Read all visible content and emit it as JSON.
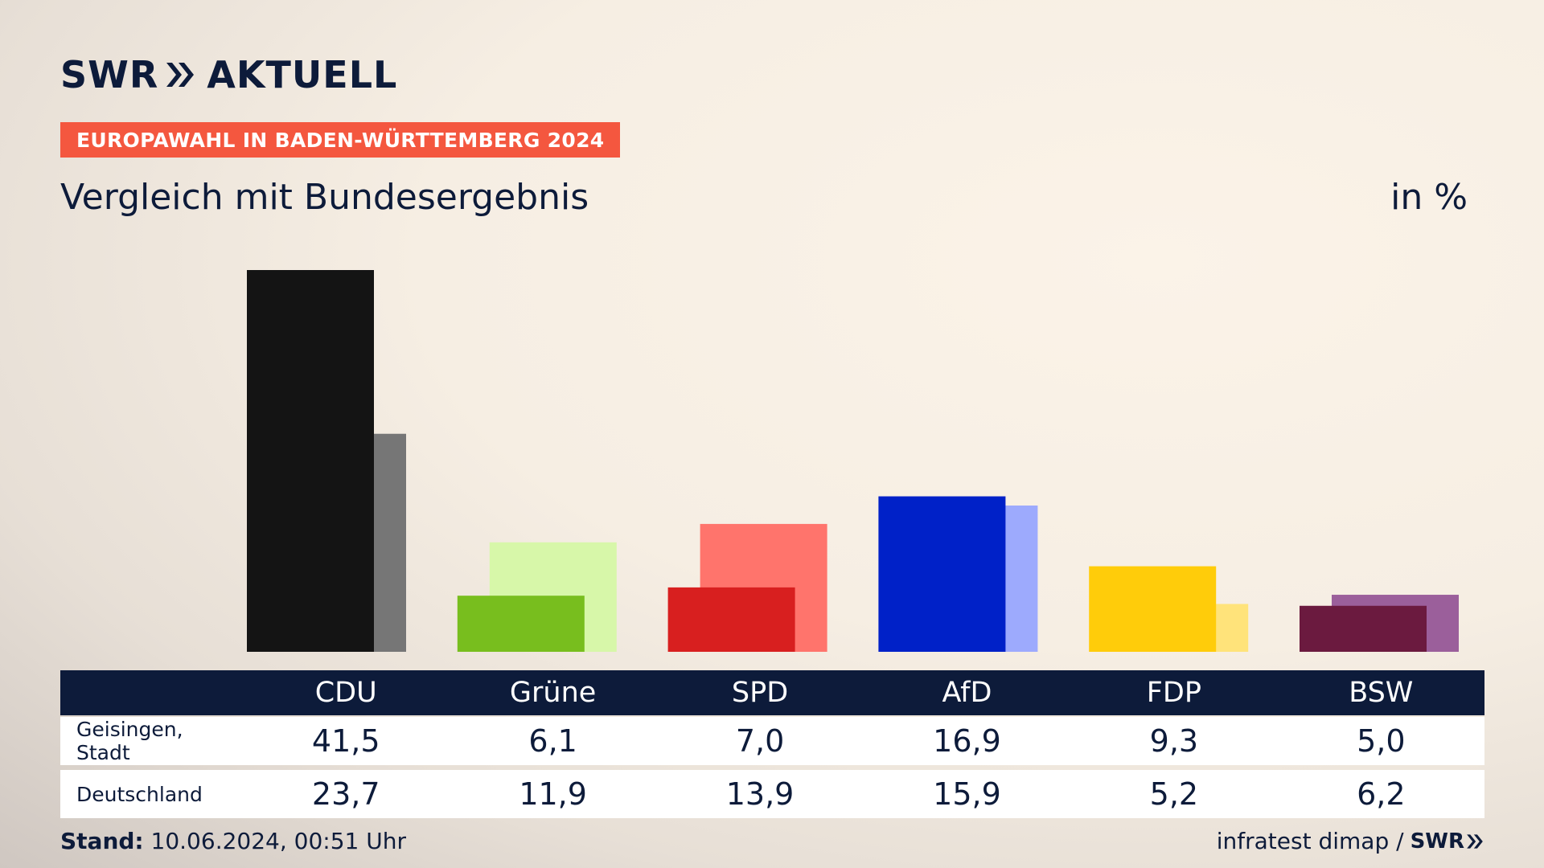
{
  "brand": {
    "logo_text_left": "SWR",
    "logo_text_right": "AKTUELL",
    "footer_logo": "SWR"
  },
  "header": {
    "kicker": "EUROPAWAHL IN BADEN-WÜRTTEMBERG 2024",
    "subtitle": "Vergleich mit Bundesergebnis",
    "unit": "in %"
  },
  "table": {
    "rows": [
      {
        "label": "Geisingen, Stadt",
        "values": [
          "41,5",
          "6,1",
          "7,0",
          "16,9",
          "9,3",
          "5,0"
        ]
      },
      {
        "label": "Deutschland",
        "values": [
          "23,7",
          "11,9",
          "13,9",
          "15,9",
          "5,2",
          "6,2"
        ]
      }
    ]
  },
  "footer": {
    "stand_label": "Stand:",
    "stand_value": "10.06.2024, 00:51 Uhr",
    "source": "infratest dimap /"
  },
  "chart_data": {
    "type": "bar",
    "categories": [
      "CDU",
      "Grüne",
      "SPD",
      "AfD",
      "FDP",
      "BSW"
    ],
    "series": [
      {
        "name": "Geisingen, Stadt",
        "values": [
          41.5,
          6.1,
          7.0,
          16.9,
          9.3,
          5.0
        ]
      },
      {
        "name": "Deutschland",
        "values": [
          23.7,
          11.9,
          13.9,
          15.9,
          5.2,
          6.2
        ]
      }
    ],
    "colors": {
      "local": [
        "#141414",
        "#78be1e",
        "#d81f1f",
        "#0021c8",
        "#ffcc0a",
        "#6b1a3f"
      ],
      "national": [
        "#767676",
        "#d7f7a9",
        "#ff746c",
        "#9daafd",
        "#ffe37a",
        "#9b5f9b"
      ]
    },
    "ylim": [
      0,
      41.5
    ],
    "xlabel": "",
    "ylabel": "",
    "grid": false
  }
}
